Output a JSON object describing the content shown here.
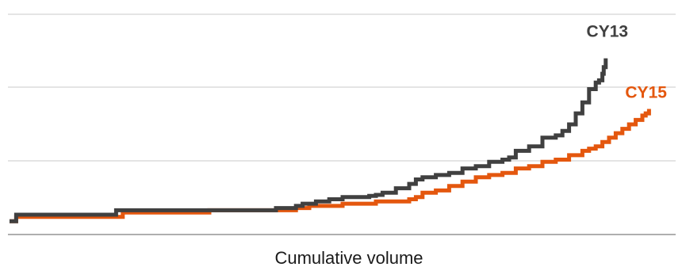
{
  "chart_data": {
    "type": "line",
    "title": "",
    "xlabel": "Cumulative volume",
    "ylabel": "",
    "xlim": [
      0,
      100
    ],
    "ylim": [
      0,
      100
    ],
    "grid": true,
    "legend": "none",
    "series": [
      {
        "name": "CY13",
        "color": "#404040",
        "x": [
          0,
          0.5,
          1,
          3,
          15,
          16,
          25,
          30,
          40,
          43,
          44,
          46,
          48,
          50,
          52,
          54,
          55,
          56,
          58,
          60,
          61,
          62,
          64,
          66,
          68,
          70,
          72,
          74,
          75,
          76,
          78,
          80,
          82,
          83,
          84,
          85,
          86,
          87,
          88,
          88.5,
          89,
          89.2,
          89.5
        ],
        "y": [
          6,
          6,
          9,
          9,
          9,
          11,
          11,
          11,
          12,
          13,
          14,
          15,
          16,
          17,
          17,
          17.5,
          18,
          19,
          21,
          23,
          25,
          26,
          27,
          28,
          30,
          31,
          33,
          34,
          35,
          38,
          40,
          44,
          45,
          47,
          50,
          55,
          60,
          66,
          69,
          70,
          73,
          76,
          80
        ]
      },
      {
        "name": "CY15",
        "color": "#e4570e",
        "x": [
          0,
          0.5,
          1,
          3,
          16,
          17,
          28,
          30,
          43,
          45,
          48,
          50,
          55,
          60,
          61,
          62,
          64,
          66,
          68,
          70,
          72,
          74,
          76,
          78,
          80,
          82,
          84,
          86,
          87,
          88,
          89,
          90,
          91,
          92,
          93,
          94,
          95,
          95.5,
          96
        ],
        "y": [
          6,
          6,
          8,
          8,
          8,
          10,
          10,
          11,
          12,
          13,
          13,
          14,
          15,
          16,
          17,
          19,
          20,
          22,
          24,
          26,
          27,
          28,
          30,
          31,
          33,
          34,
          36,
          38,
          39,
          40,
          42,
          44,
          46,
          48,
          50,
          52,
          54,
          55,
          57
        ]
      }
    ]
  }
}
